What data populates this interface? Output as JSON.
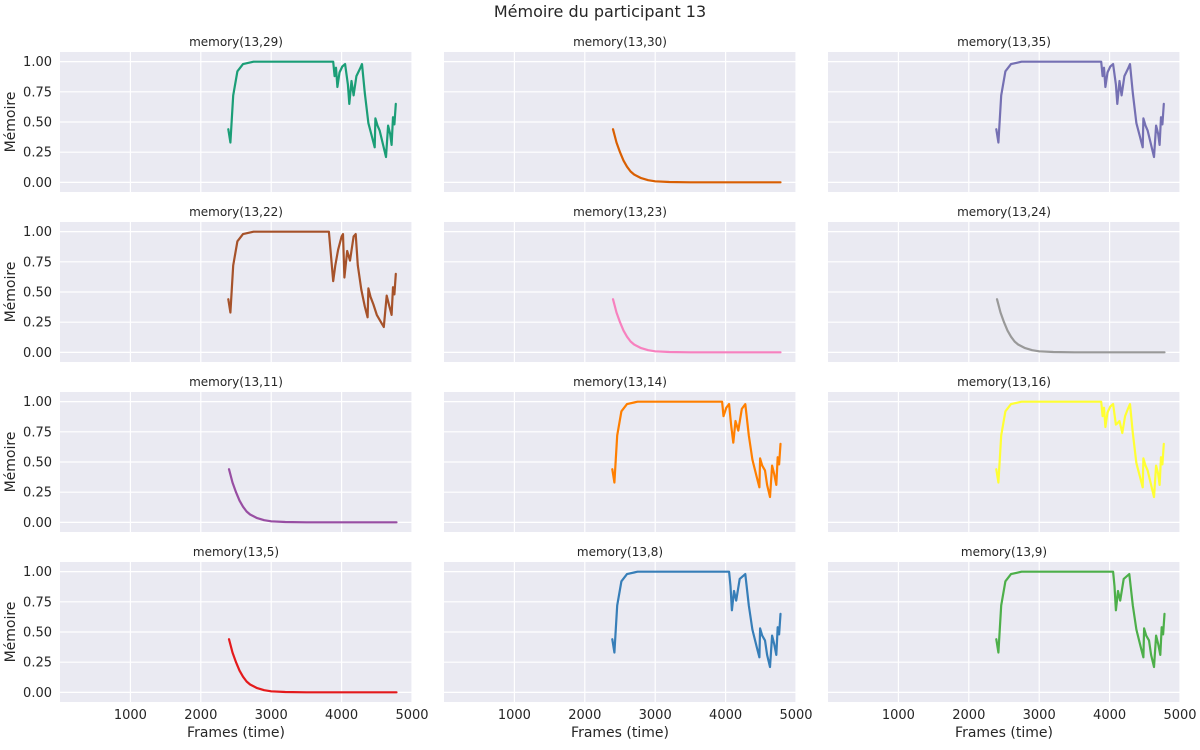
{
  "chart_data": {
    "type": "line",
    "title": "Mémoire du participant 13",
    "xlabel": "Frames (time)",
    "ylabel": "Mémoire",
    "xlim": [
      0,
      5000
    ],
    "ylim": [
      -0.08,
      1.08
    ],
    "xticks": [
      1000,
      2000,
      3000,
      4000,
      5000
    ],
    "yticks": [
      0.0,
      0.25,
      0.5,
      0.75,
      1.0
    ],
    "ytick_labels": [
      "0.00",
      "0.25",
      "0.50",
      "0.75",
      "1.00"
    ],
    "grid": true,
    "rows": 4,
    "cols": 3,
    "shared_x": true,
    "shared_y": true,
    "panels": [
      {
        "title": "memory(13,29)",
        "color": "#1b9e77",
        "pattern": "active",
        "points": [
          [
            2390,
            0.44
          ],
          [
            2420,
            0.33
          ],
          [
            2460,
            0.72
          ],
          [
            2520,
            0.92
          ],
          [
            2600,
            0.98
          ],
          [
            2750,
            1.0
          ],
          [
            3880,
            1.0
          ],
          [
            3900,
            0.88
          ],
          [
            3920,
            0.95
          ],
          [
            3940,
            0.79
          ],
          [
            3970,
            0.91
          ],
          [
            4010,
            0.96
          ],
          [
            4050,
            0.98
          ],
          [
            4090,
            0.81
          ],
          [
            4110,
            0.65
          ],
          [
            4140,
            0.84
          ],
          [
            4170,
            0.72
          ],
          [
            4210,
            0.88
          ],
          [
            4260,
            0.94
          ],
          [
            4290,
            0.98
          ],
          [
            4330,
            0.74
          ],
          [
            4380,
            0.49
          ],
          [
            4430,
            0.38
          ],
          [
            4470,
            0.29
          ],
          [
            4480,
            0.53
          ],
          [
            4510,
            0.47
          ],
          [
            4540,
            0.43
          ],
          [
            4590,
            0.31
          ],
          [
            4630,
            0.21
          ],
          [
            4660,
            0.47
          ],
          [
            4690,
            0.4
          ],
          [
            4710,
            0.31
          ],
          [
            4730,
            0.54
          ],
          [
            4750,
            0.48
          ],
          [
            4770,
            0.65
          ]
        ]
      },
      {
        "title": "memory(13,30)",
        "color": "#d95f02",
        "pattern": "decay",
        "points": [
          [
            2400,
            0.44
          ],
          [
            2450,
            0.33
          ],
          [
            2500,
            0.25
          ],
          [
            2550,
            0.18
          ],
          [
            2600,
            0.13
          ],
          [
            2650,
            0.09
          ],
          [
            2700,
            0.065
          ],
          [
            2800,
            0.035
          ],
          [
            2900,
            0.018
          ],
          [
            3000,
            0.009
          ],
          [
            3200,
            0.003
          ],
          [
            3500,
            0.0
          ],
          [
            4780,
            0.0
          ]
        ]
      },
      {
        "title": "memory(13,35)",
        "color": "#7570b3",
        "pattern": "active",
        "points": [
          [
            2390,
            0.44
          ],
          [
            2420,
            0.33
          ],
          [
            2460,
            0.72
          ],
          [
            2520,
            0.92
          ],
          [
            2600,
            0.98
          ],
          [
            2750,
            1.0
          ],
          [
            3880,
            1.0
          ],
          [
            3900,
            0.88
          ],
          [
            3920,
            0.95
          ],
          [
            3940,
            0.79
          ],
          [
            3970,
            0.91
          ],
          [
            4010,
            0.96
          ],
          [
            4050,
            0.98
          ],
          [
            4090,
            0.81
          ],
          [
            4110,
            0.65
          ],
          [
            4140,
            0.84
          ],
          [
            4170,
            0.72
          ],
          [
            4210,
            0.88
          ],
          [
            4260,
            0.94
          ],
          [
            4290,
            0.98
          ],
          [
            4330,
            0.74
          ],
          [
            4380,
            0.49
          ],
          [
            4430,
            0.38
          ],
          [
            4470,
            0.29
          ],
          [
            4480,
            0.53
          ],
          [
            4510,
            0.47
          ],
          [
            4540,
            0.43
          ],
          [
            4590,
            0.31
          ],
          [
            4630,
            0.21
          ],
          [
            4660,
            0.47
          ],
          [
            4690,
            0.4
          ],
          [
            4710,
            0.31
          ],
          [
            4730,
            0.54
          ],
          [
            4750,
            0.48
          ],
          [
            4770,
            0.65
          ]
        ]
      },
      {
        "title": "memory(13,22)",
        "color": "#a6522a",
        "pattern": "active",
        "points": [
          [
            2390,
            0.44
          ],
          [
            2420,
            0.33
          ],
          [
            2460,
            0.72
          ],
          [
            2520,
            0.92
          ],
          [
            2600,
            0.98
          ],
          [
            2750,
            1.0
          ],
          [
            3820,
            1.0
          ],
          [
            3850,
            0.8
          ],
          [
            3880,
            0.59
          ],
          [
            3910,
            0.72
          ],
          [
            3950,
            0.85
          ],
          [
            4000,
            0.96
          ],
          [
            4020,
            0.98
          ],
          [
            4040,
            0.62
          ],
          [
            4080,
            0.84
          ],
          [
            4120,
            0.76
          ],
          [
            4170,
            0.96
          ],
          [
            4200,
            0.98
          ],
          [
            4230,
            0.72
          ],
          [
            4280,
            0.52
          ],
          [
            4330,
            0.38
          ],
          [
            4370,
            0.29
          ],
          [
            4380,
            0.53
          ],
          [
            4410,
            0.46
          ],
          [
            4450,
            0.4
          ],
          [
            4500,
            0.31
          ],
          [
            4600,
            0.21
          ],
          [
            4640,
            0.47
          ],
          [
            4670,
            0.4
          ],
          [
            4710,
            0.31
          ],
          [
            4730,
            0.54
          ],
          [
            4750,
            0.48
          ],
          [
            4770,
            0.65
          ]
        ]
      },
      {
        "title": "memory(13,23)",
        "color": "#f781bf",
        "pattern": "decay",
        "points": [
          [
            2400,
            0.44
          ],
          [
            2450,
            0.33
          ],
          [
            2500,
            0.25
          ],
          [
            2550,
            0.18
          ],
          [
            2600,
            0.13
          ],
          [
            2650,
            0.09
          ],
          [
            2700,
            0.065
          ],
          [
            2800,
            0.035
          ],
          [
            2900,
            0.018
          ],
          [
            3000,
            0.009
          ],
          [
            3200,
            0.003
          ],
          [
            3500,
            0.0
          ],
          [
            4780,
            0.0
          ]
        ]
      },
      {
        "title": "memory(13,24)",
        "color": "#999999",
        "pattern": "decay",
        "points": [
          [
            2400,
            0.44
          ],
          [
            2450,
            0.33
          ],
          [
            2500,
            0.25
          ],
          [
            2550,
            0.18
          ],
          [
            2600,
            0.13
          ],
          [
            2650,
            0.09
          ],
          [
            2700,
            0.065
          ],
          [
            2800,
            0.035
          ],
          [
            2900,
            0.018
          ],
          [
            3000,
            0.009
          ],
          [
            3200,
            0.003
          ],
          [
            3500,
            0.0
          ],
          [
            4780,
            0.0
          ]
        ]
      },
      {
        "title": "memory(13,11)",
        "color": "#984ea3",
        "pattern": "decay",
        "points": [
          [
            2400,
            0.44
          ],
          [
            2450,
            0.33
          ],
          [
            2500,
            0.25
          ],
          [
            2550,
            0.18
          ],
          [
            2600,
            0.13
          ],
          [
            2650,
            0.09
          ],
          [
            2700,
            0.065
          ],
          [
            2800,
            0.035
          ],
          [
            2900,
            0.018
          ],
          [
            3000,
            0.009
          ],
          [
            3200,
            0.003
          ],
          [
            3500,
            0.0
          ],
          [
            4780,
            0.0
          ]
        ]
      },
      {
        "title": "memory(13,14)",
        "color": "#ff7f00",
        "pattern": "active",
        "points": [
          [
            2390,
            0.44
          ],
          [
            2420,
            0.33
          ],
          [
            2460,
            0.72
          ],
          [
            2520,
            0.92
          ],
          [
            2600,
            0.98
          ],
          [
            2750,
            1.0
          ],
          [
            3950,
            1.0
          ],
          [
            3970,
            0.88
          ],
          [
            4010,
            0.95
          ],
          [
            4050,
            0.98
          ],
          [
            4080,
            0.8
          ],
          [
            4110,
            0.66
          ],
          [
            4140,
            0.84
          ],
          [
            4180,
            0.76
          ],
          [
            4230,
            0.94
          ],
          [
            4280,
            0.98
          ],
          [
            4330,
            0.72
          ],
          [
            4380,
            0.52
          ],
          [
            4440,
            0.38
          ],
          [
            4480,
            0.29
          ],
          [
            4490,
            0.53
          ],
          [
            4520,
            0.47
          ],
          [
            4560,
            0.43
          ],
          [
            4590,
            0.31
          ],
          [
            4630,
            0.21
          ],
          [
            4660,
            0.47
          ],
          [
            4690,
            0.4
          ],
          [
            4720,
            0.31
          ],
          [
            4740,
            0.54
          ],
          [
            4760,
            0.48
          ],
          [
            4780,
            0.65
          ]
        ]
      },
      {
        "title": "memory(13,16)",
        "color": "#ffff33",
        "pattern": "active",
        "points": [
          [
            2390,
            0.44
          ],
          [
            2420,
            0.33
          ],
          [
            2460,
            0.72
          ],
          [
            2520,
            0.92
          ],
          [
            2600,
            0.98
          ],
          [
            2750,
            1.0
          ],
          [
            3880,
            1.0
          ],
          [
            3900,
            0.88
          ],
          [
            3920,
            0.95
          ],
          [
            3940,
            0.79
          ],
          [
            3970,
            0.91
          ],
          [
            4010,
            0.96
          ],
          [
            4050,
            0.98
          ],
          [
            4090,
            0.81
          ],
          [
            4110,
            0.82
          ],
          [
            4140,
            0.84
          ],
          [
            4180,
            0.74
          ],
          [
            4220,
            0.88
          ],
          [
            4260,
            0.94
          ],
          [
            4290,
            0.98
          ],
          [
            4330,
            0.74
          ],
          [
            4380,
            0.49
          ],
          [
            4430,
            0.38
          ],
          [
            4470,
            0.29
          ],
          [
            4480,
            0.53
          ],
          [
            4510,
            0.47
          ],
          [
            4540,
            0.43
          ],
          [
            4590,
            0.31
          ],
          [
            4630,
            0.21
          ],
          [
            4660,
            0.47
          ],
          [
            4690,
            0.4
          ],
          [
            4710,
            0.31
          ],
          [
            4730,
            0.54
          ],
          [
            4750,
            0.48
          ],
          [
            4770,
            0.65
          ]
        ]
      },
      {
        "title": "memory(13,5)",
        "color": "#e41a1c",
        "pattern": "decay",
        "points": [
          [
            2400,
            0.44
          ],
          [
            2450,
            0.33
          ],
          [
            2500,
            0.25
          ],
          [
            2550,
            0.18
          ],
          [
            2600,
            0.13
          ],
          [
            2650,
            0.09
          ],
          [
            2700,
            0.065
          ],
          [
            2800,
            0.035
          ],
          [
            2900,
            0.018
          ],
          [
            3000,
            0.009
          ],
          [
            3200,
            0.003
          ],
          [
            3500,
            0.0
          ],
          [
            4780,
            0.0
          ]
        ]
      },
      {
        "title": "memory(13,8)",
        "color": "#377eb8",
        "pattern": "active",
        "points": [
          [
            2390,
            0.44
          ],
          [
            2420,
            0.33
          ],
          [
            2460,
            0.72
          ],
          [
            2520,
            0.92
          ],
          [
            2600,
            0.98
          ],
          [
            2750,
            1.0
          ],
          [
            4050,
            1.0
          ],
          [
            4070,
            0.88
          ],
          [
            4090,
            0.68
          ],
          [
            4120,
            0.84
          ],
          [
            4150,
            0.76
          ],
          [
            4200,
            0.94
          ],
          [
            4280,
            0.98
          ],
          [
            4330,
            0.72
          ],
          [
            4380,
            0.52
          ],
          [
            4440,
            0.38
          ],
          [
            4480,
            0.29
          ],
          [
            4490,
            0.53
          ],
          [
            4520,
            0.47
          ],
          [
            4560,
            0.43
          ],
          [
            4590,
            0.31
          ],
          [
            4630,
            0.21
          ],
          [
            4660,
            0.47
          ],
          [
            4690,
            0.4
          ],
          [
            4720,
            0.31
          ],
          [
            4740,
            0.54
          ],
          [
            4760,
            0.48
          ],
          [
            4780,
            0.65
          ]
        ]
      },
      {
        "title": "memory(13,9)",
        "color": "#4daf4a",
        "pattern": "active",
        "points": [
          [
            2390,
            0.44
          ],
          [
            2420,
            0.33
          ],
          [
            2460,
            0.72
          ],
          [
            2520,
            0.92
          ],
          [
            2600,
            0.98
          ],
          [
            2750,
            1.0
          ],
          [
            4050,
            1.0
          ],
          [
            4070,
            0.88
          ],
          [
            4090,
            0.68
          ],
          [
            4120,
            0.84
          ],
          [
            4150,
            0.76
          ],
          [
            4200,
            0.94
          ],
          [
            4280,
            0.98
          ],
          [
            4330,
            0.72
          ],
          [
            4380,
            0.52
          ],
          [
            4440,
            0.38
          ],
          [
            4480,
            0.29
          ],
          [
            4490,
            0.53
          ],
          [
            4520,
            0.47
          ],
          [
            4560,
            0.43
          ],
          [
            4590,
            0.31
          ],
          [
            4630,
            0.21
          ],
          [
            4660,
            0.47
          ],
          [
            4690,
            0.4
          ],
          [
            4720,
            0.31
          ],
          [
            4740,
            0.54
          ],
          [
            4760,
            0.48
          ],
          [
            4780,
            0.65
          ]
        ]
      }
    ]
  }
}
